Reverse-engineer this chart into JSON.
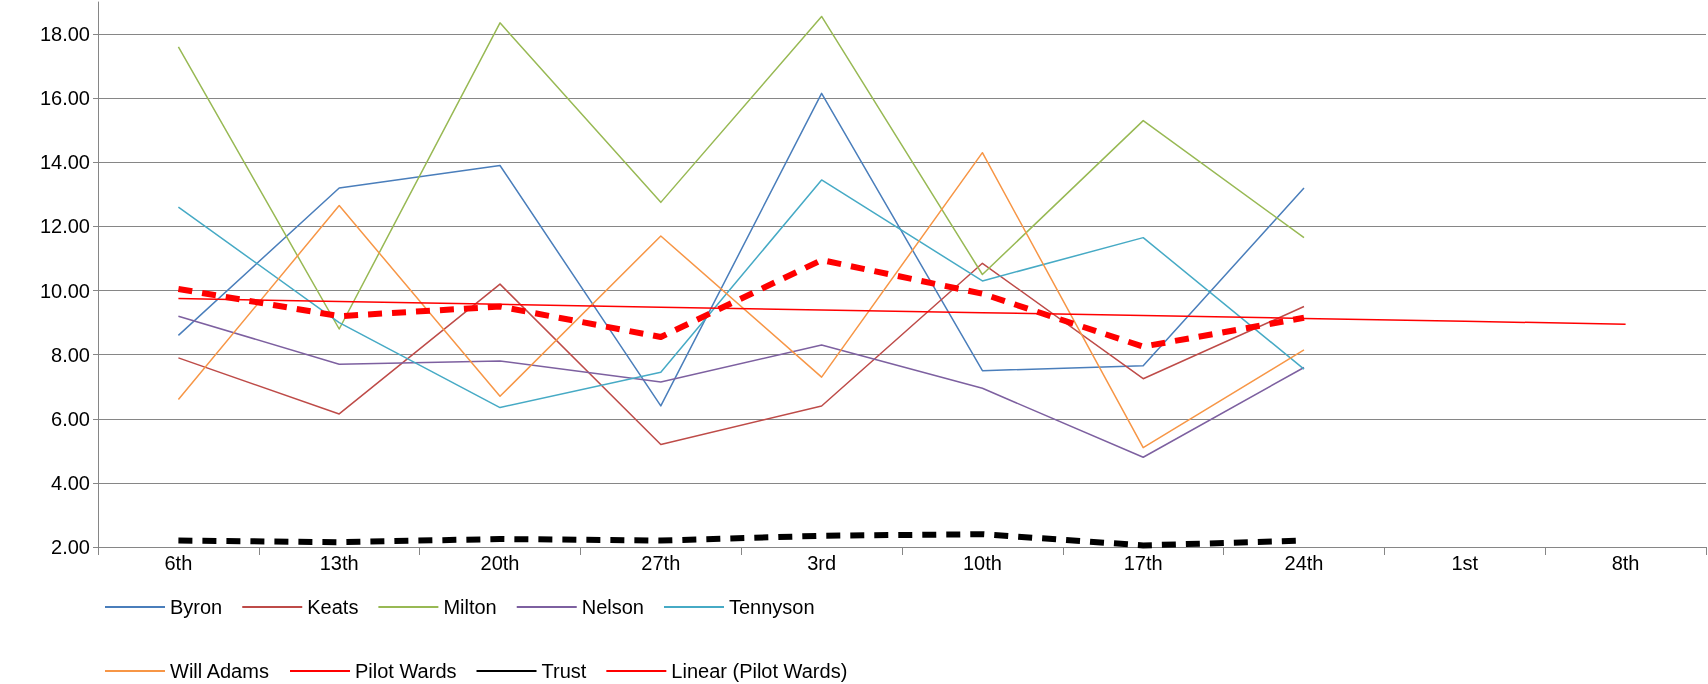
{
  "chart_data": {
    "type": "line",
    "categories": [
      "6th",
      "13th",
      "20th",
      "27th",
      "3rd",
      "10th",
      "17th",
      "24th",
      "1st",
      "8th"
    ],
    "ylim": [
      2,
      19
    ],
    "yticks": [
      {
        "value": 2,
        "label": "2.00"
      },
      {
        "value": 4,
        "label": "4.00"
      },
      {
        "value": 6,
        "label": "6.00"
      },
      {
        "value": 8,
        "label": "8.00"
      },
      {
        "value": 10,
        "label": "10.00"
      },
      {
        "value": 12,
        "label": "12.00"
      },
      {
        "value": 14,
        "label": "14.00"
      },
      {
        "value": 16,
        "label": "16.00"
      },
      {
        "value": 18,
        "label": "18.00"
      }
    ],
    "grid": "y",
    "legend": "bottom",
    "marker": "none",
    "series": [
      {
        "name": "Byron",
        "color": "#4a7ebb",
        "line_style": "solid",
        "values": [
          8.6,
          13.2,
          13.9,
          6.4,
          16.15,
          7.5,
          7.65,
          13.2,
          null,
          null
        ]
      },
      {
        "name": "Keats",
        "color": "#be4b48",
        "line_style": "solid",
        "values": [
          7.9,
          6.15,
          10.2,
          5.2,
          6.4,
          10.85,
          7.25,
          9.5,
          null,
          null
        ]
      },
      {
        "name": "Milton",
        "color": "#98b954",
        "line_style": "solid",
        "values": [
          17.6,
          8.8,
          18.35,
          12.75,
          18.55,
          10.5,
          15.3,
          11.65,
          null,
          null
        ]
      },
      {
        "name": "Nelson",
        "color": "#7d60a0",
        "line_style": "solid",
        "values": [
          9.2,
          7.7,
          7.8,
          7.15,
          8.3,
          6.95,
          4.8,
          7.6,
          null,
          null
        ]
      },
      {
        "name": "Tennyson",
        "color": "#46aac5",
        "line_style": "solid",
        "values": [
          12.6,
          9.0,
          6.35,
          7.45,
          13.45,
          10.3,
          11.65,
          7.55,
          null,
          null
        ]
      },
      {
        "name": "Will Adams",
        "color": "#f79646",
        "line_style": "solid",
        "values": [
          6.6,
          12.65,
          6.7,
          11.7,
          7.3,
          14.3,
          5.1,
          8.15,
          null,
          null
        ]
      },
      {
        "name": "Pilot Wards",
        "color": "#ff0000",
        "line_style": "dashed",
        "values": [
          10.05,
          9.2,
          9.5,
          8.55,
          10.95,
          9.9,
          8.25,
          9.15,
          null,
          null
        ]
      },
      {
        "name": "Trust",
        "color": "#000000",
        "line_style": "dashed",
        "values": [
          2.2,
          2.15,
          2.25,
          2.2,
          2.35,
          2.4,
          2.05,
          2.2,
          null,
          null
        ]
      },
      {
        "name": "Linear (Pilot Wards)",
        "color": "#ff0000",
        "line_style": "solid",
        "values": [
          9.75,
          9.66,
          9.57,
          9.48,
          9.39,
          9.31,
          9.22,
          9.13,
          9.04,
          8.95
        ]
      }
    ]
  }
}
